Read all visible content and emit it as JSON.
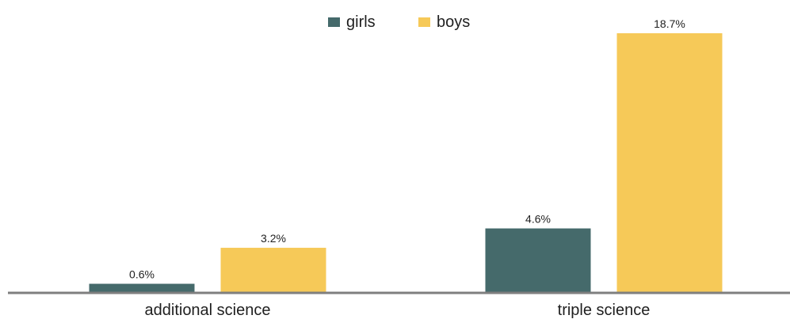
{
  "chart_data": {
    "type": "bar",
    "categories": [
      "additional science",
      "triple science"
    ],
    "series": [
      {
        "name": "girls",
        "values": [
          0.6,
          4.6
        ],
        "color": "#456a6b"
      },
      {
        "name": "boys",
        "values": [
          3.2,
          18.7
        ],
        "color": "#f6c958"
      }
    ],
    "data_labels": [
      [
        "0.6%",
        "4.6%"
      ],
      [
        "3.2%",
        "18.7%"
      ]
    ],
    "value_unit": "%",
    "ylim": [
      0,
      18.7
    ],
    "legend_position": "top-center",
    "grid": false,
    "axis_color": "#7f7f7f"
  }
}
